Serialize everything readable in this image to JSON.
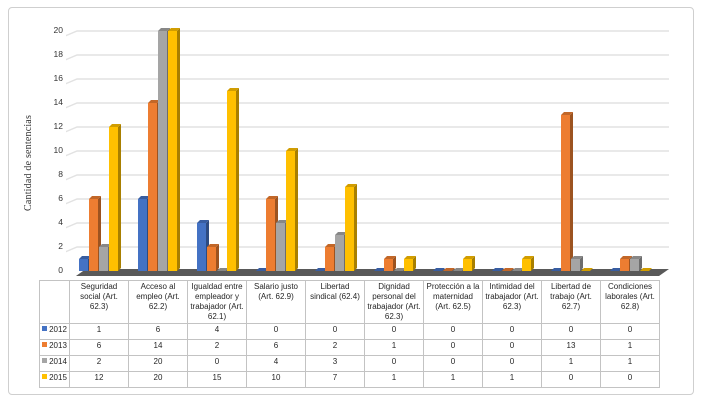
{
  "chart_data": {
    "type": "bar",
    "subtype": "3d-clustered-column",
    "title": "",
    "xlabel": "",
    "ylabel": "Cantidad de sentencias",
    "ylim": [
      0,
      20
    ],
    "ytick_step": 2,
    "yticks": [
      0,
      2,
      4,
      6,
      8,
      10,
      12,
      14,
      16,
      18,
      20
    ],
    "grid": true,
    "legend_position": "data-table-left",
    "categories": [
      "Seguridad social (Art. 62.3)",
      "Acceso al empleo (Art. 62.2)",
      "Igualdad entre empleador y trabajador (Art. 62.1)",
      "Salario justo (Art. 62.9)",
      "Libertad sindical (62.4)",
      "Dignidad personal del trabajador (Art. 62.3)",
      "Protección a la maternidad (Art. 62.5)",
      "Intimidad del trabajador (Art. 62.3)",
      "Libertad de trabajo (Art. 62.7)",
      "Condiciones laborales (Art. 62.8)"
    ],
    "series": [
      {
        "name": "2012",
        "color": "#4472C4",
        "values": [
          1,
          6,
          4,
          0,
          0,
          0,
          0,
          0,
          0,
          0
        ]
      },
      {
        "name": "2013",
        "color": "#ED7D31",
        "values": [
          6,
          14,
          2,
          6,
          2,
          1,
          0,
          0,
          13,
          1
        ]
      },
      {
        "name": "2014",
        "color": "#A5A5A5",
        "values": [
          2,
          20,
          0,
          4,
          3,
          0,
          0,
          0,
          1,
          1
        ]
      },
      {
        "name": "2015",
        "color": "#FFC000",
        "values": [
          12,
          20,
          15,
          10,
          7,
          1,
          1,
          1,
          0,
          0
        ]
      }
    ],
    "colors": {
      "floor": "#595959",
      "floor_side": "#a6a6a6",
      "gridline": "#e2e2e2"
    }
  }
}
